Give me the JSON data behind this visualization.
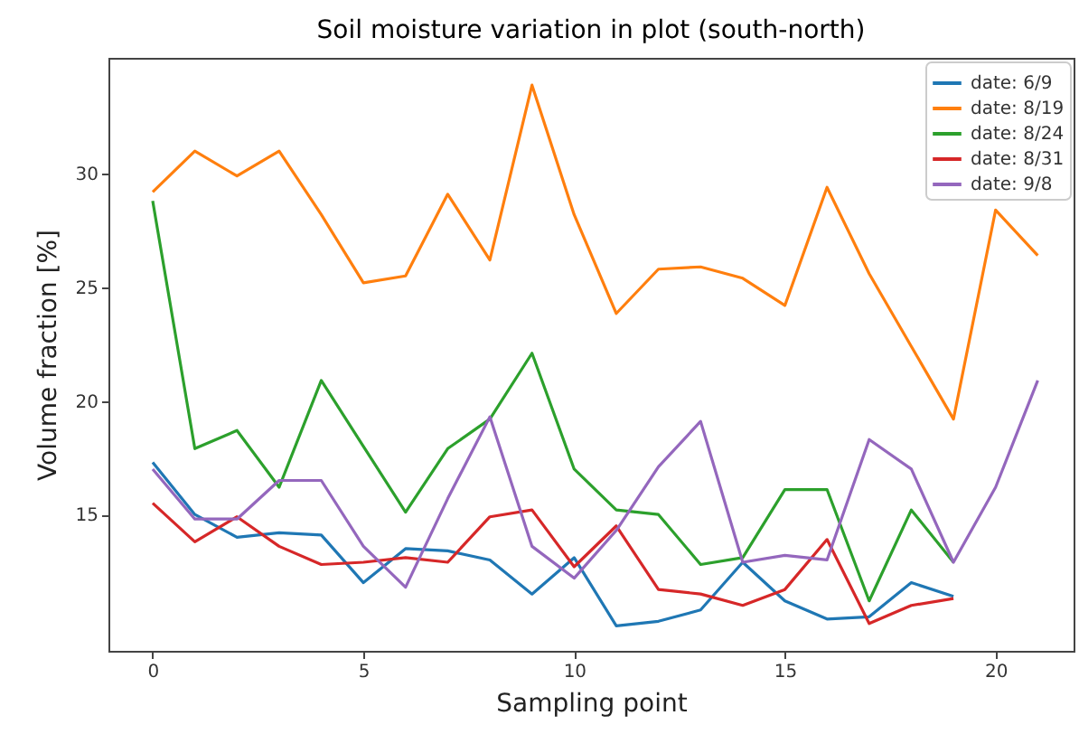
{
  "chart_data": {
    "type": "line",
    "title": "Soil moisture variation in plot (south-north)",
    "xlabel": "Sampling point",
    "ylabel": "Volume fraction [%]",
    "x": [
      0,
      1,
      2,
      3,
      4,
      5,
      6,
      7,
      8,
      9,
      10,
      11,
      12,
      13,
      14,
      15,
      16,
      17,
      18,
      19,
      20,
      21
    ],
    "xlim": [
      -1.05,
      21.85
    ],
    "xticks": [
      0,
      5,
      10,
      15,
      20
    ],
    "ylim": [
      9.0,
      35.1
    ],
    "yticks": [
      15,
      20,
      25,
      30
    ],
    "grid": false,
    "legend": "top right",
    "series": [
      {
        "name": "date: 6/9",
        "color": "#1f77b4",
        "x": [
          0,
          1,
          2,
          3,
          4,
          5,
          6,
          7,
          8,
          9,
          10,
          11,
          12,
          13,
          14,
          15,
          16,
          17,
          18,
          19
        ],
        "values": [
          17.3,
          15.0,
          14.0,
          14.2,
          14.1,
          12.0,
          13.5,
          13.4,
          13.0,
          11.5,
          13.1,
          10.1,
          10.3,
          10.8,
          12.9,
          11.2,
          10.4,
          10.5,
          12.0,
          11.4
        ]
      },
      {
        "name": "date: 8/19",
        "color": "#ff7f0e",
        "values": [
          29.2,
          31.0,
          29.9,
          31.0,
          28.2,
          25.2,
          25.5,
          29.1,
          26.2,
          33.9,
          28.2,
          23.85,
          25.8,
          25.9,
          25.4,
          24.2,
          29.4,
          25.6,
          22.4,
          19.2,
          28.4,
          26.4
        ]
      },
      {
        "name": "date: 8/24",
        "color": "#2ca02c",
        "x": [
          0,
          1,
          2,
          3,
          4,
          5,
          6,
          7,
          8,
          9,
          10,
          11,
          12,
          13,
          14,
          15,
          16,
          17,
          18,
          19
        ],
        "values": [
          28.8,
          17.9,
          18.7,
          16.2,
          20.9,
          18.0,
          15.1,
          17.9,
          19.2,
          22.1,
          17.0,
          15.2,
          15.0,
          12.8,
          13.1,
          16.1,
          16.1,
          11.2,
          15.2,
          12.9
        ]
      },
      {
        "name": "date: 8/31",
        "color": "#d62728",
        "x": [
          0,
          1,
          2,
          3,
          4,
          5,
          6,
          7,
          8,
          9,
          10,
          11,
          12,
          13,
          14,
          15,
          16,
          17,
          18,
          19
        ],
        "values": [
          15.5,
          13.8,
          14.9,
          13.6,
          12.8,
          12.9,
          13.1,
          12.9,
          14.9,
          15.2,
          12.7,
          14.5,
          11.7,
          11.5,
          11.0,
          11.7,
          13.9,
          10.2,
          11.0,
          11.3
        ]
      },
      {
        "name": "date: 9/8",
        "color": "#9467bd",
        "values": [
          17.0,
          14.8,
          14.8,
          16.5,
          16.5,
          13.6,
          11.8,
          15.7,
          19.3,
          13.6,
          12.2,
          14.3,
          17.1,
          19.1,
          12.9,
          13.2,
          13.0,
          18.3,
          17.0,
          12.9,
          16.2,
          20.9
        ]
      }
    ]
  }
}
